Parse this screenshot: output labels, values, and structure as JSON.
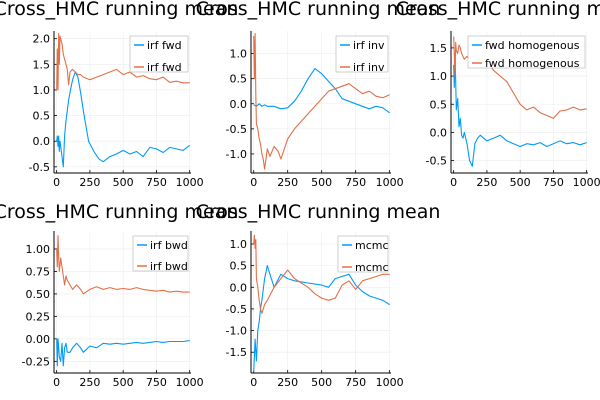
{
  "figure": {
    "background": "#ffffff"
  },
  "colors": {
    "series1": "#009AFA",
    "series2": "#E36F47",
    "grid": "#ececec",
    "axis": "#000000"
  },
  "chart_data": [
    {
      "type": "line",
      "title": "Cross_HMC running mean",
      "xlabel": "",
      "ylabel": "",
      "xlim": [
        -20,
        1010
      ],
      "ylim": [
        -0.62,
        2.15
      ],
      "xticks": [
        0,
        250,
        500,
        750,
        1000
      ],
      "xtick_labels": [
        "0",
        "250",
        "500",
        "750",
        "1000"
      ],
      "yticks": [
        -0.5,
        0,
        0.5,
        1,
        1.5,
        2
      ],
      "ytick_labels": [
        "-0.5",
        "0.0",
        "0.5",
        "1.0",
        "1.5",
        "2.0"
      ],
      "grid": true,
      "legend_position": "top-right",
      "series": [
        {
          "name": "irf fwd",
          "x": [
            0,
            5,
            10,
            15,
            20,
            25,
            30,
            40,
            50,
            60,
            70,
            80,
            90,
            100,
            120,
            140,
            160,
            180,
            200,
            220,
            240,
            260,
            280,
            300,
            320,
            350,
            400,
            450,
            500,
            550,
            600,
            650,
            700,
            750,
            800,
            850,
            900,
            950,
            1000
          ],
          "y": [
            0.0,
            0.1,
            -0.1,
            0.1,
            -0.2,
            0.0,
            -0.1,
            -0.3,
            -0.5,
            0.1,
            0.4,
            0.6,
            0.8,
            0.95,
            1.2,
            1.35,
            1.25,
            0.95,
            0.6,
            0.3,
            0.0,
            -0.1,
            -0.2,
            -0.28,
            -0.35,
            -0.4,
            -0.3,
            -0.25,
            -0.18,
            -0.25,
            -0.2,
            -0.3,
            -0.12,
            -0.15,
            -0.22,
            -0.12,
            -0.15,
            -0.18,
            -0.08
          ]
        },
        {
          "name": "irf fwd",
          "x": [
            0,
            5,
            10,
            15,
            20,
            25,
            30,
            40,
            50,
            60,
            70,
            80,
            90,
            100,
            120,
            140,
            160,
            180,
            200,
            250,
            300,
            350,
            400,
            450,
            500,
            550,
            600,
            650,
            700,
            750,
            800,
            850,
            900,
            950,
            1000
          ],
          "y": [
            1.0,
            1.8,
            1.0,
            2.1,
            1.5,
            2.05,
            2.0,
            1.9,
            1.7,
            1.6,
            1.5,
            1.4,
            1.1,
            1.35,
            1.4,
            1.35,
            1.3,
            1.3,
            1.25,
            1.2,
            1.25,
            1.3,
            1.35,
            1.4,
            1.3,
            1.35,
            1.25,
            1.28,
            1.22,
            1.2,
            1.25,
            1.15,
            1.17,
            1.14,
            1.14
          ]
        }
      ]
    },
    {
      "type": "line",
      "title": "Cross_HMC running mean",
      "xlabel": "",
      "ylabel": "",
      "xlim": [
        -20,
        1010
      ],
      "ylim": [
        -1.38,
        1.45
      ],
      "xticks": [
        0,
        250,
        500,
        750,
        1000
      ],
      "xtick_labels": [
        "0",
        "250",
        "500",
        "750",
        "1000"
      ],
      "yticks": [
        -1,
        -0.5,
        0,
        0.5,
        1
      ],
      "ytick_labels": [
        "-1.0",
        "-0.5",
        "0.0",
        "0.5",
        "1.0"
      ],
      "grid": true,
      "legend_position": "top-right",
      "series": [
        {
          "name": "irf inv",
          "x": [
            0,
            20,
            40,
            60,
            80,
            100,
            150,
            200,
            250,
            300,
            350,
            400,
            450,
            500,
            550,
            600,
            650,
            700,
            750,
            800,
            850,
            900,
            950,
            1000
          ],
          "y": [
            -0.02,
            -0.05,
            0.0,
            -0.05,
            -0.02,
            -0.05,
            -0.05,
            -0.1,
            -0.08,
            0.05,
            0.25,
            0.5,
            0.7,
            0.6,
            0.45,
            0.3,
            0.1,
            0.05,
            0.0,
            -0.05,
            -0.1,
            -0.05,
            -0.08,
            -0.18
          ]
        },
        {
          "name": "irf inv",
          "x": [
            0,
            5,
            10,
            15,
            20,
            30,
            40,
            50,
            60,
            70,
            80,
            100,
            120,
            150,
            180,
            200,
            250,
            300,
            350,
            400,
            450,
            500,
            550,
            600,
            650,
            700,
            750,
            800,
            850,
            900,
            950,
            1000
          ],
          "y": [
            1.35,
            0.5,
            1.4,
            0.2,
            -0.4,
            -0.5,
            -0.7,
            -0.8,
            -1.0,
            -1.1,
            -1.3,
            -0.9,
            -1.05,
            -0.85,
            -0.95,
            -1.1,
            -0.7,
            -0.5,
            -0.35,
            -0.2,
            -0.05,
            0.1,
            0.25,
            0.3,
            0.35,
            0.4,
            0.3,
            0.2,
            0.25,
            0.15,
            0.12,
            0.18
          ]
        }
      ]
    },
    {
      "type": "line",
      "title": "Cross_HMC running mean",
      "xlabel": "",
      "ylabel": "",
      "xlim": [
        -20,
        1010
      ],
      "ylim": [
        -0.72,
        1.8
      ],
      "xticks": [
        0,
        250,
        500,
        750,
        1000
      ],
      "xtick_labels": [
        "0",
        "250",
        "500",
        "750",
        "1000"
      ],
      "yticks": [
        -0.5,
        0,
        0.5,
        1,
        1.5
      ],
      "ytick_labels": [
        "-0.5",
        "0.0",
        "0.5",
        "1.0",
        "1.5"
      ],
      "grid": true,
      "legend_position": "top-right",
      "series": [
        {
          "name": "fwd homogenous",
          "x": [
            0,
            5,
            10,
            15,
            20,
            30,
            40,
            50,
            60,
            70,
            80,
            100,
            120,
            140,
            160,
            180,
            200,
            250,
            300,
            350,
            400,
            450,
            500,
            550,
            600,
            650,
            700,
            750,
            800,
            850,
            900,
            950,
            1000
          ],
          "y": [
            1.2,
            0.8,
            1.4,
            0.9,
            0.4,
            0.6,
            0.1,
            0.25,
            -0.05,
            -0.1,
            0.0,
            -0.2,
            -0.5,
            -0.6,
            -0.2,
            -0.1,
            -0.05,
            -0.15,
            -0.1,
            -0.05,
            -0.15,
            -0.2,
            -0.25,
            -0.2,
            -0.22,
            -0.18,
            -0.25,
            -0.2,
            -0.15,
            -0.2,
            -0.18,
            -0.22,
            -0.18
          ]
        },
        {
          "name": "fwd homogenous",
          "x": [
            0,
            5,
            10,
            15,
            20,
            30,
            40,
            50,
            60,
            80,
            100,
            150,
            200,
            250,
            300,
            350,
            400,
            450,
            500,
            550,
            600,
            650,
            700,
            750,
            800,
            850,
            900,
            950,
            1000
          ],
          "y": [
            1.7,
            1.4,
            1.0,
            1.6,
            1.45,
            1.4,
            1.55,
            1.5,
            1.4,
            1.3,
            1.35,
            1.2,
            1.3,
            1.25,
            1.1,
            1.0,
            0.9,
            0.7,
            0.5,
            0.4,
            0.45,
            0.35,
            0.3,
            0.25,
            0.38,
            0.4,
            0.45,
            0.4,
            0.42
          ]
        }
      ]
    },
    {
      "type": "line",
      "title": "Cross_HMC running mean",
      "xlabel": "",
      "ylabel": "",
      "xlim": [
        -20,
        1010
      ],
      "ylim": [
        -0.38,
        1.2
      ],
      "xticks": [
        0,
        250,
        500,
        750,
        1000
      ],
      "xtick_labels": [
        "0",
        "250",
        "500",
        "750",
        "1000"
      ],
      "yticks": [
        -0.25,
        0,
        0.25,
        0.5,
        0.75,
        1
      ],
      "ytick_labels": [
        "-0.25",
        "0.00",
        "0.25",
        "0.50",
        "0.75",
        "1.00"
      ],
      "grid": true,
      "legend_position": "top-right",
      "series": [
        {
          "name": "irf bwd",
          "x": [
            0,
            5,
            10,
            15,
            20,
            30,
            40,
            50,
            60,
            70,
            80,
            100,
            120,
            150,
            180,
            200,
            250,
            300,
            350,
            400,
            450,
            500,
            550,
            600,
            650,
            700,
            750,
            800,
            850,
            900,
            950,
            1000
          ],
          "y": [
            0.0,
            -0.3,
            0.0,
            -0.1,
            -0.2,
            -0.25,
            -0.05,
            -0.3,
            -0.1,
            -0.05,
            -0.15,
            -0.15,
            -0.1,
            -0.05,
            -0.1,
            -0.15,
            -0.08,
            -0.1,
            -0.05,
            -0.06,
            -0.05,
            -0.06,
            -0.05,
            -0.04,
            -0.05,
            -0.04,
            -0.03,
            -0.04,
            -0.03,
            -0.03,
            -0.03,
            -0.02
          ]
        },
        {
          "name": "irf bwd",
          "x": [
            0,
            5,
            10,
            15,
            20,
            30,
            40,
            50,
            60,
            70,
            80,
            100,
            120,
            150,
            180,
            200,
            250,
            300,
            350,
            400,
            450,
            500,
            550,
            600,
            650,
            700,
            750,
            800,
            850,
            900,
            950,
            1000
          ],
          "y": [
            1.0,
            0.8,
            1.15,
            0.9,
            0.75,
            0.9,
            0.8,
            0.7,
            0.6,
            0.7,
            0.65,
            0.6,
            0.55,
            0.6,
            0.55,
            0.5,
            0.55,
            0.58,
            0.55,
            0.57,
            0.55,
            0.56,
            0.55,
            0.57,
            0.55,
            0.54,
            0.53,
            0.54,
            0.52,
            0.53,
            0.52,
            0.52
          ]
        }
      ]
    },
    {
      "type": "line",
      "title": "Cross_HMC running mean",
      "xlabel": "",
      "ylabel": "",
      "xlim": [
        -20,
        1010
      ],
      "ylim": [
        -1.98,
        1.3
      ],
      "xticks": [
        0,
        250,
        500,
        750,
        1000
      ],
      "xtick_labels": [
        "0",
        "250",
        "500",
        "750",
        "1000"
      ],
      "yticks": [
        -1.5,
        -1,
        -0.5,
        0,
        0.5,
        1
      ],
      "ytick_labels": [
        "-1.5",
        "-1.0",
        "-0.5",
        "0.0",
        "0.5",
        "1.0"
      ],
      "grid": true,
      "legend_position": "top-right",
      "series": [
        {
          "name": "mcmc",
          "x": [
            0,
            5,
            10,
            20,
            30,
            40,
            50,
            60,
            80,
            100,
            120,
            150,
            200,
            250,
            300,
            400,
            500,
            550,
            600,
            700,
            750,
            800,
            850,
            900,
            950,
            1000
          ],
          "y": [
            -1.95,
            -1.6,
            -1.2,
            -1.7,
            -1.0,
            -0.8,
            -0.5,
            -0.3,
            0.2,
            0.5,
            0.3,
            0.0,
            0.3,
            0.2,
            0.15,
            0.1,
            0.05,
            0.0,
            0.2,
            0.3,
            0.05,
            -0.1,
            -0.2,
            -0.25,
            -0.3,
            -0.4
          ]
        },
        {
          "name": "mcmc",
          "x": [
            0,
            5,
            10,
            15,
            20,
            30,
            40,
            50,
            60,
            80,
            100,
            150,
            200,
            250,
            300,
            350,
            400,
            450,
            500,
            550,
            600,
            650,
            700,
            750,
            800,
            850,
            900,
            950,
            1000
          ],
          "y": [
            1.0,
            1.2,
            0.9,
            1.1,
            0.2,
            0.0,
            -0.3,
            -0.5,
            -0.6,
            -0.4,
            -0.3,
            0.0,
            0.2,
            0.4,
            0.2,
            0.1,
            0.0,
            -0.15,
            -0.25,
            -0.3,
            -0.25,
            0.05,
            0.15,
            -0.05,
            0.15,
            0.2,
            0.25,
            0.3,
            0.3
          ]
        }
      ]
    }
  ]
}
